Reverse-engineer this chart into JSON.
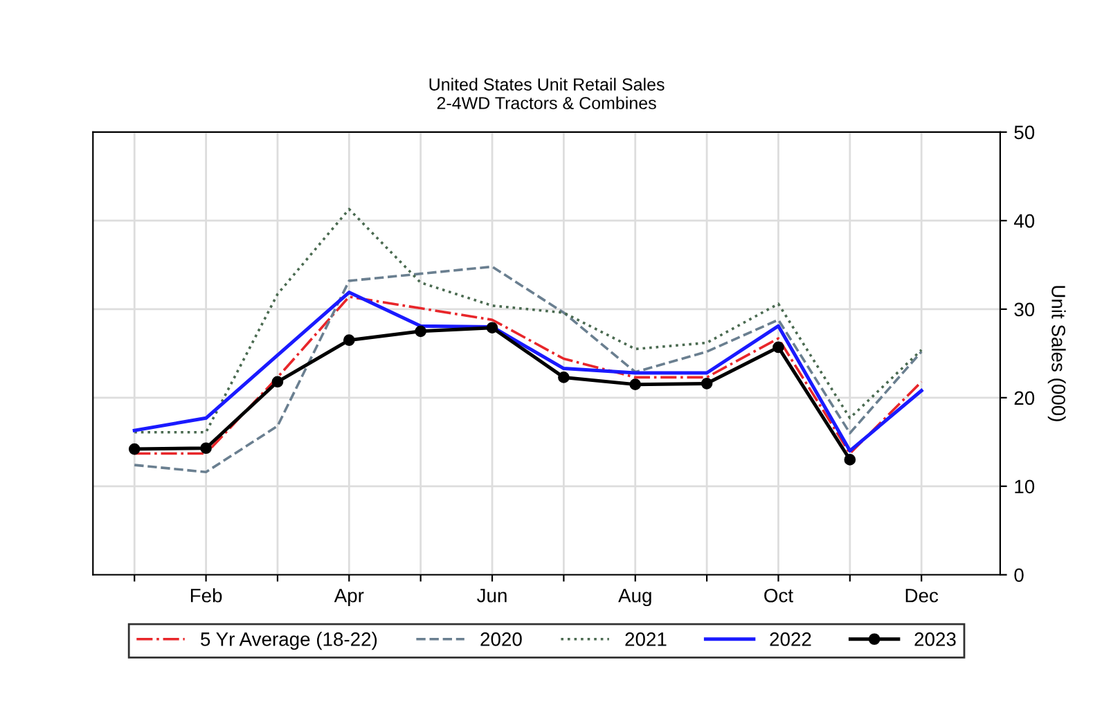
{
  "chart_data": {
    "type": "line",
    "title": "United States Unit Retail Sales\n2-4WD Tractors & Combines",
    "ylabel": "Unit Sales (000)",
    "categories": [
      null,
      "Feb",
      null,
      "Apr",
      null,
      "Jun",
      null,
      "Aug",
      null,
      "Oct",
      null,
      "Dec"
    ],
    "ylim": [
      0,
      50
    ],
    "yticks": [
      0,
      10,
      20,
      30,
      40,
      50
    ],
    "grid": true,
    "legend": "bottom",
    "series": [
      {
        "name": "5 Yr Average (18-22)",
        "color": "#e8262a",
        "line_style": "dashdot",
        "values": [
          13.7,
          13.7,
          22.3,
          31.4,
          30.1,
          28.8,
          24.4,
          22.3,
          22.3,
          26.7,
          13.7,
          21.8
        ]
      },
      {
        "name": "2020",
        "color": "#6a7f90",
        "line_style": "dashed",
        "values": [
          12.4,
          11.6,
          16.8,
          33.2,
          34.0,
          34.8,
          29.6,
          22.9,
          25.2,
          28.8,
          16.0,
          25.2
        ]
      },
      {
        "name": "2021",
        "color": "#4a6a50",
        "line_style": "dotted",
        "values": [
          16.1,
          16.1,
          31.7,
          41.3,
          33.0,
          30.4,
          29.6,
          25.5,
          26.2,
          30.6,
          17.7,
          25.4
        ]
      },
      {
        "name": "2022",
        "color": "#1a1aff",
        "line_style": "solid",
        "values": [
          16.3,
          17.7,
          24.8,
          31.9,
          28.1,
          28.0,
          23.3,
          22.8,
          22.8,
          28.1,
          14.0,
          20.8
        ]
      },
      {
        "name": "2023",
        "color": "#000000",
        "line_style": "solid",
        "marker": "circle",
        "values": [
          14.2,
          14.3,
          21.8,
          26.5,
          27.5,
          27.9,
          22.3,
          21.5,
          21.6,
          25.7,
          13.0,
          null
        ]
      }
    ]
  }
}
